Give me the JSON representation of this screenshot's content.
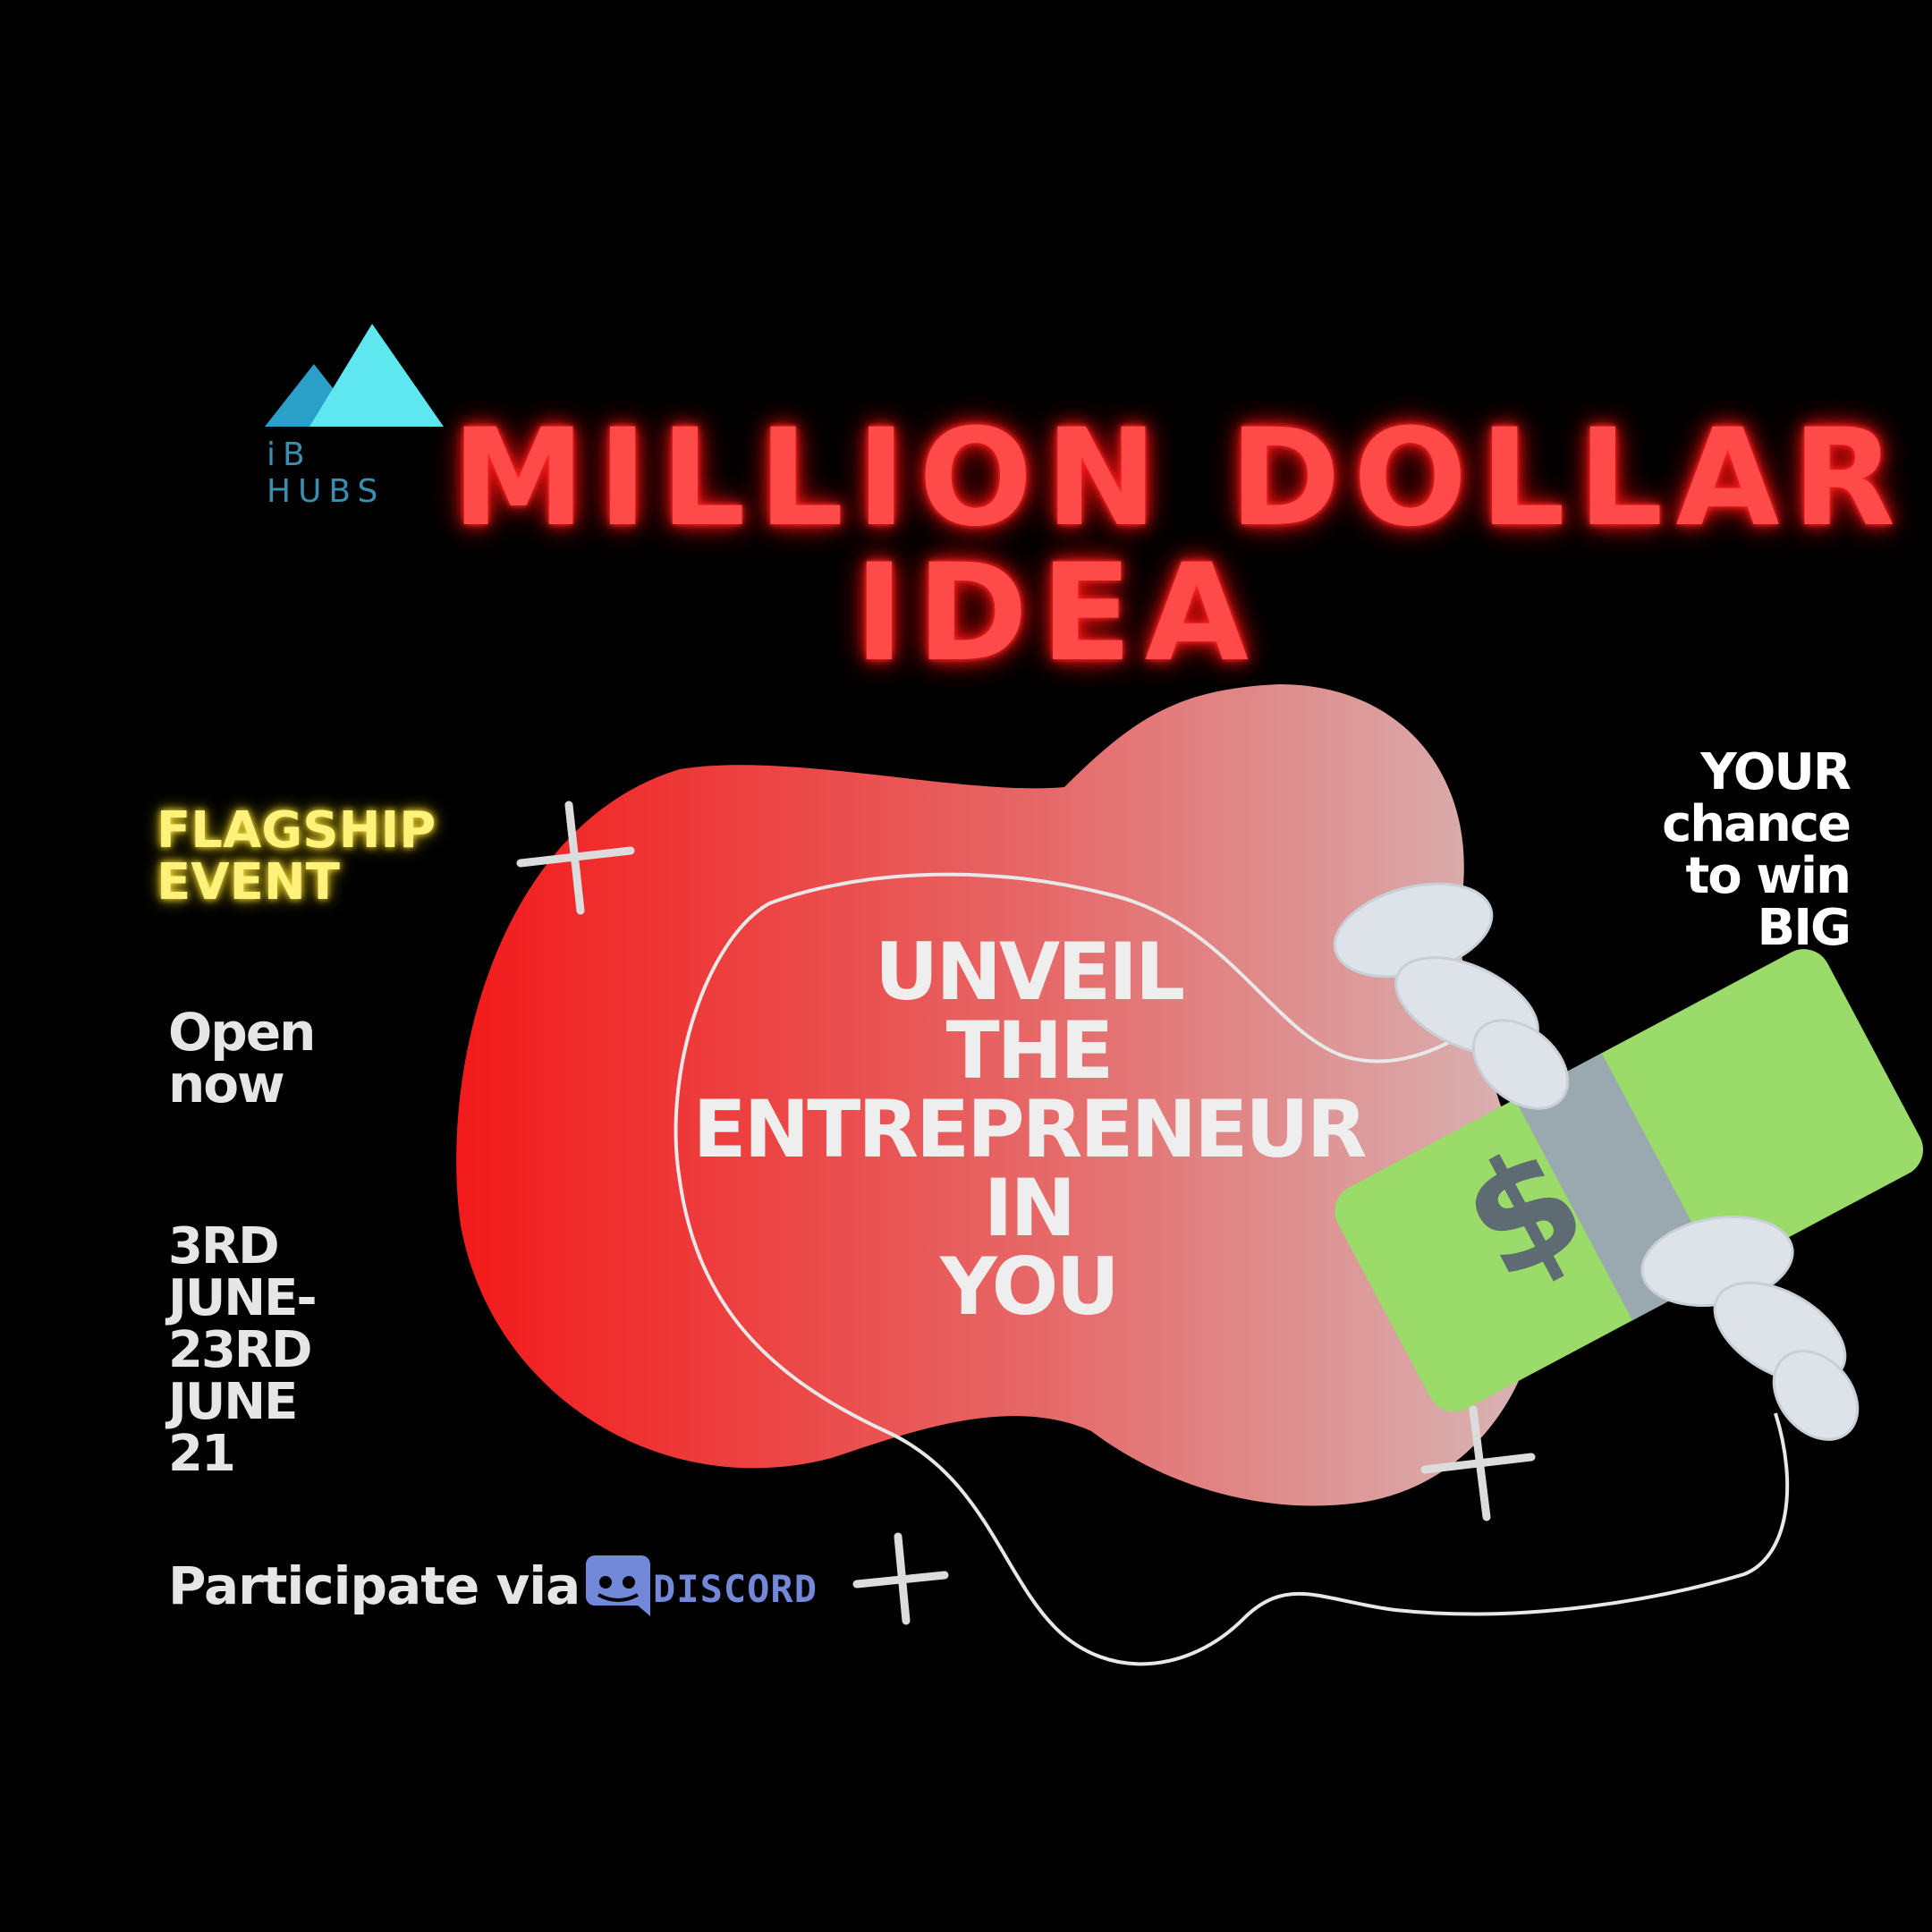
{
  "logo": {
    "text": "iB HUBS",
    "colors": {
      "back": "#2aa0c8",
      "front": "#5ee7ef"
    }
  },
  "title": {
    "line1": "MILLION DOLLAR",
    "line2": "IDEA",
    "color": "#ff4a4a"
  },
  "left": {
    "flagship": [
      "FLAGSHIP",
      "EVENT"
    ],
    "open_now": [
      "Open",
      "now"
    ],
    "dates": [
      "3RD",
      "JUNE-",
      "23RD",
      "JUNE",
      "21"
    ],
    "participate": "Participate via"
  },
  "right": {
    "chance": [
      "YOUR",
      "chance",
      "to win",
      "BIG"
    ]
  },
  "headline": [
    "UNVEIL",
    "THE",
    "ENTREPRENEUR",
    "IN",
    "YOU"
  ],
  "discord": {
    "label": "DISCORD",
    "color": "#7289da"
  },
  "icons": [
    "money-bill-icon",
    "wing-icon",
    "discord-icon",
    "plus-icon"
  ]
}
